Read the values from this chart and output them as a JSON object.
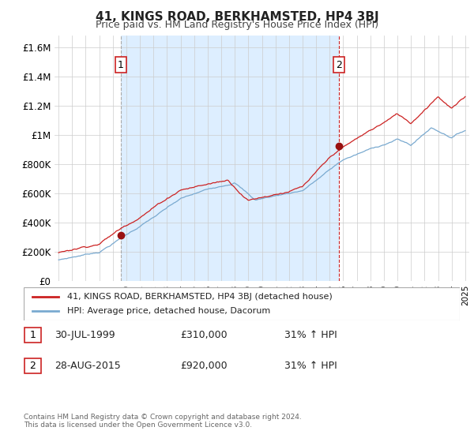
{
  "title": "41, KINGS ROAD, BERKHAMSTED, HP4 3BJ",
  "subtitle": "Price paid vs. HM Land Registry's House Price Index (HPI)",
  "ylabel_ticks": [
    "£0",
    "£200K",
    "£400K",
    "£600K",
    "£800K",
    "£1M",
    "£1.2M",
    "£1.4M",
    "£1.6M"
  ],
  "ytick_values": [
    0,
    200000,
    400000,
    600000,
    800000,
    1000000,
    1200000,
    1400000,
    1600000
  ],
  "ylim": [
    0,
    1680000
  ],
  "xlim_start": 1994.7,
  "xlim_end": 2025.3,
  "red_color": "#cc2222",
  "blue_color": "#7aaad0",
  "fill_color": "#ddeeff",
  "annotation_box_color": "#cc2222",
  "vline1_color": "#aaaaaa",
  "vline2_color": "#cc2222",
  "grid_color": "#cccccc",
  "point1_x": 1999.58,
  "point1_y": 310000,
  "point2_x": 2015.66,
  "point2_y": 920000,
  "legend_label_red": "41, KINGS ROAD, BERKHAMSTED, HP4 3BJ (detached house)",
  "legend_label_blue": "HPI: Average price, detached house, Dacorum",
  "table_row1": [
    "1",
    "30-JUL-1999",
    "£310,000",
    "31% ↑ HPI"
  ],
  "table_row2": [
    "2",
    "28-AUG-2015",
    "£920,000",
    "31% ↑ HPI"
  ],
  "footnote": "Contains HM Land Registry data © Crown copyright and database right 2024.\nThis data is licensed under the Open Government Licence v3.0.",
  "background_color": "#ffffff"
}
